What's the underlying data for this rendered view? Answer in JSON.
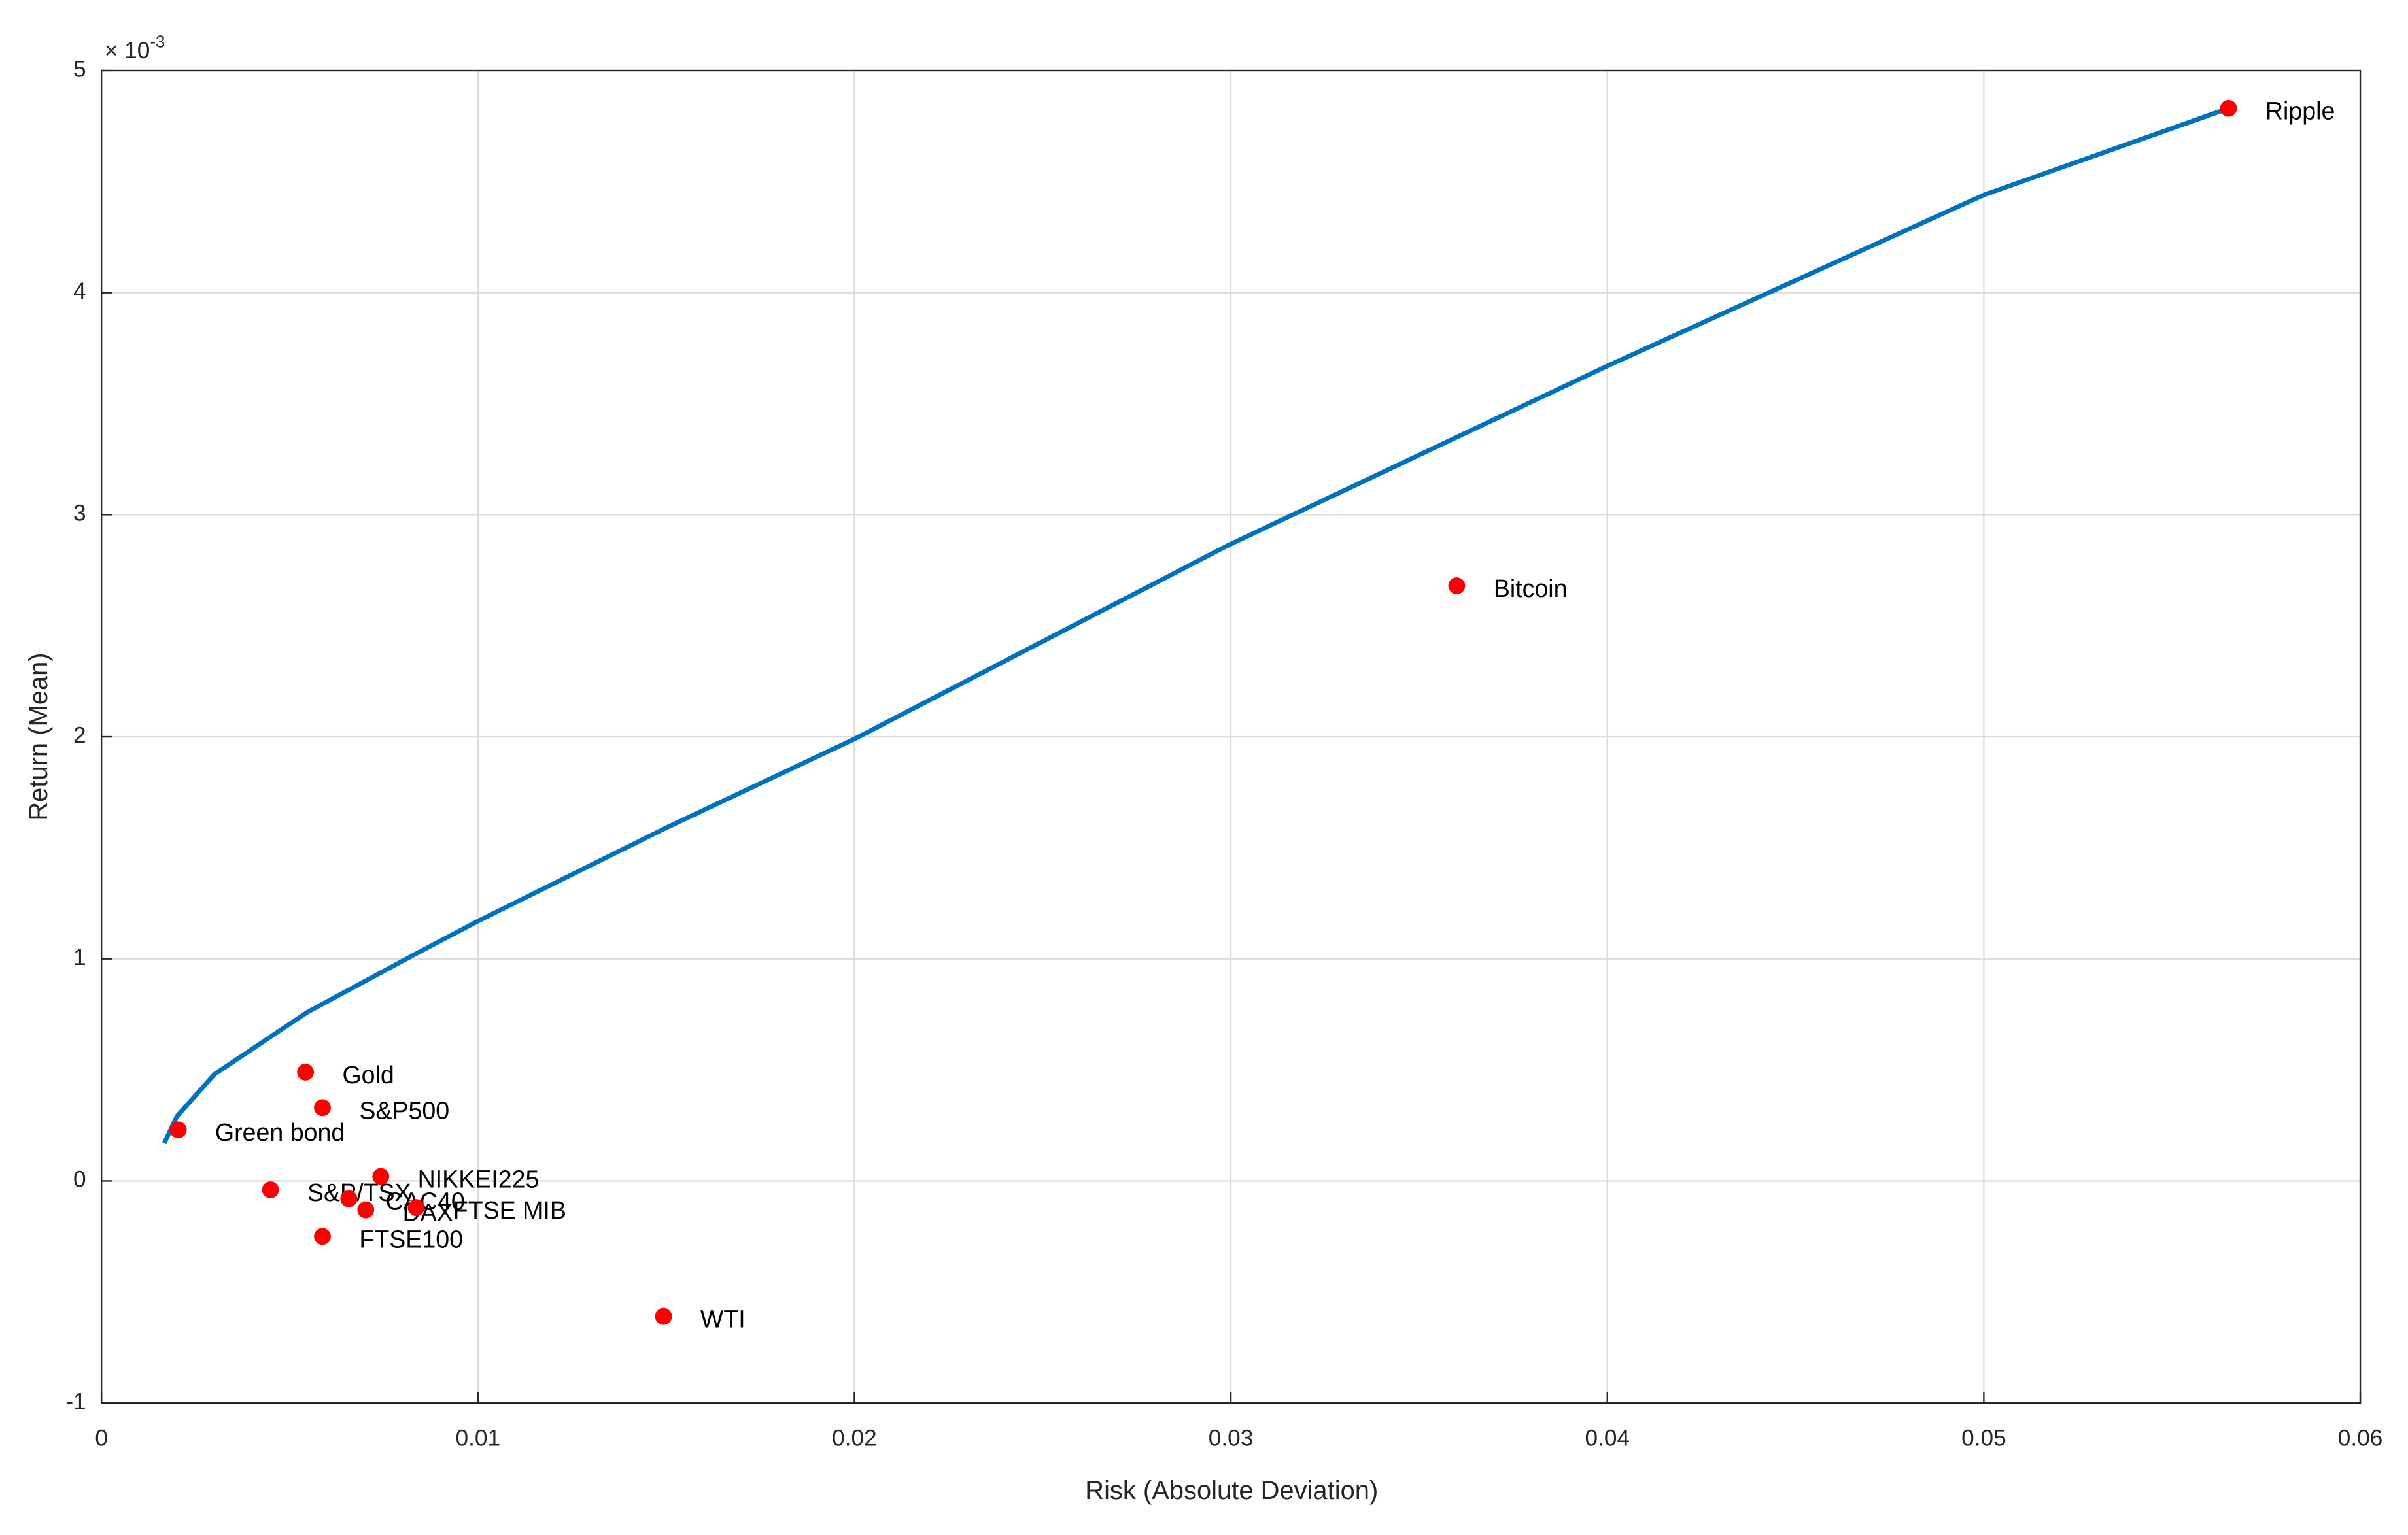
{
  "chart_data": {
    "type": "scatter",
    "xlabel": "Risk (Absolute Deviation)",
    "ylabel": "Return (Mean)",
    "y_multiplier": {
      "base": "× 10",
      "exponent": "-3"
    },
    "xlim": [
      0,
      0.06
    ],
    "xticks": [
      0,
      0.01,
      0.02,
      0.03,
      0.04,
      0.05,
      0.06
    ],
    "ylim": [
      -1,
      5
    ],
    "yticks": [
      -1,
      0,
      1,
      2,
      3,
      4,
      5
    ],
    "grid": true,
    "line": {
      "color": "#0072bd",
      "x": [
        0.00167,
        0.002,
        0.003,
        0.00547,
        0.00832,
        0.01,
        0.015,
        0.02,
        0.0299,
        0.04,
        0.05,
        0.0565
      ],
      "values": [
        0.17,
        0.29,
        0.48,
        0.76,
        1.02,
        1.17,
        1.59,
        1.99,
        2.86,
        3.67,
        4.44,
        4.83
      ]
    },
    "points": {
      "color": "#ff0000",
      "labels": [
        "Ripple",
        "Bitcoin",
        "Gold",
        "S&P500",
        "Green bond",
        "NIKKEI225",
        "S&P/TSX",
        "CAC40",
        "DAX",
        "FTSE MIB",
        "FTSE100",
        "WTI"
      ],
      "x": [
        0.0565,
        0.036,
        0.00542,
        0.00587,
        0.00204,
        0.00742,
        0.00449,
        0.00657,
        0.00702,
        0.00836,
        0.00587,
        0.01493
      ],
      "values": [
        4.83,
        2.68,
        0.49,
        0.33,
        0.23,
        0.02,
        -0.04,
        -0.08,
        -0.13,
        -0.12,
        -0.25,
        -0.61
      ]
    }
  }
}
